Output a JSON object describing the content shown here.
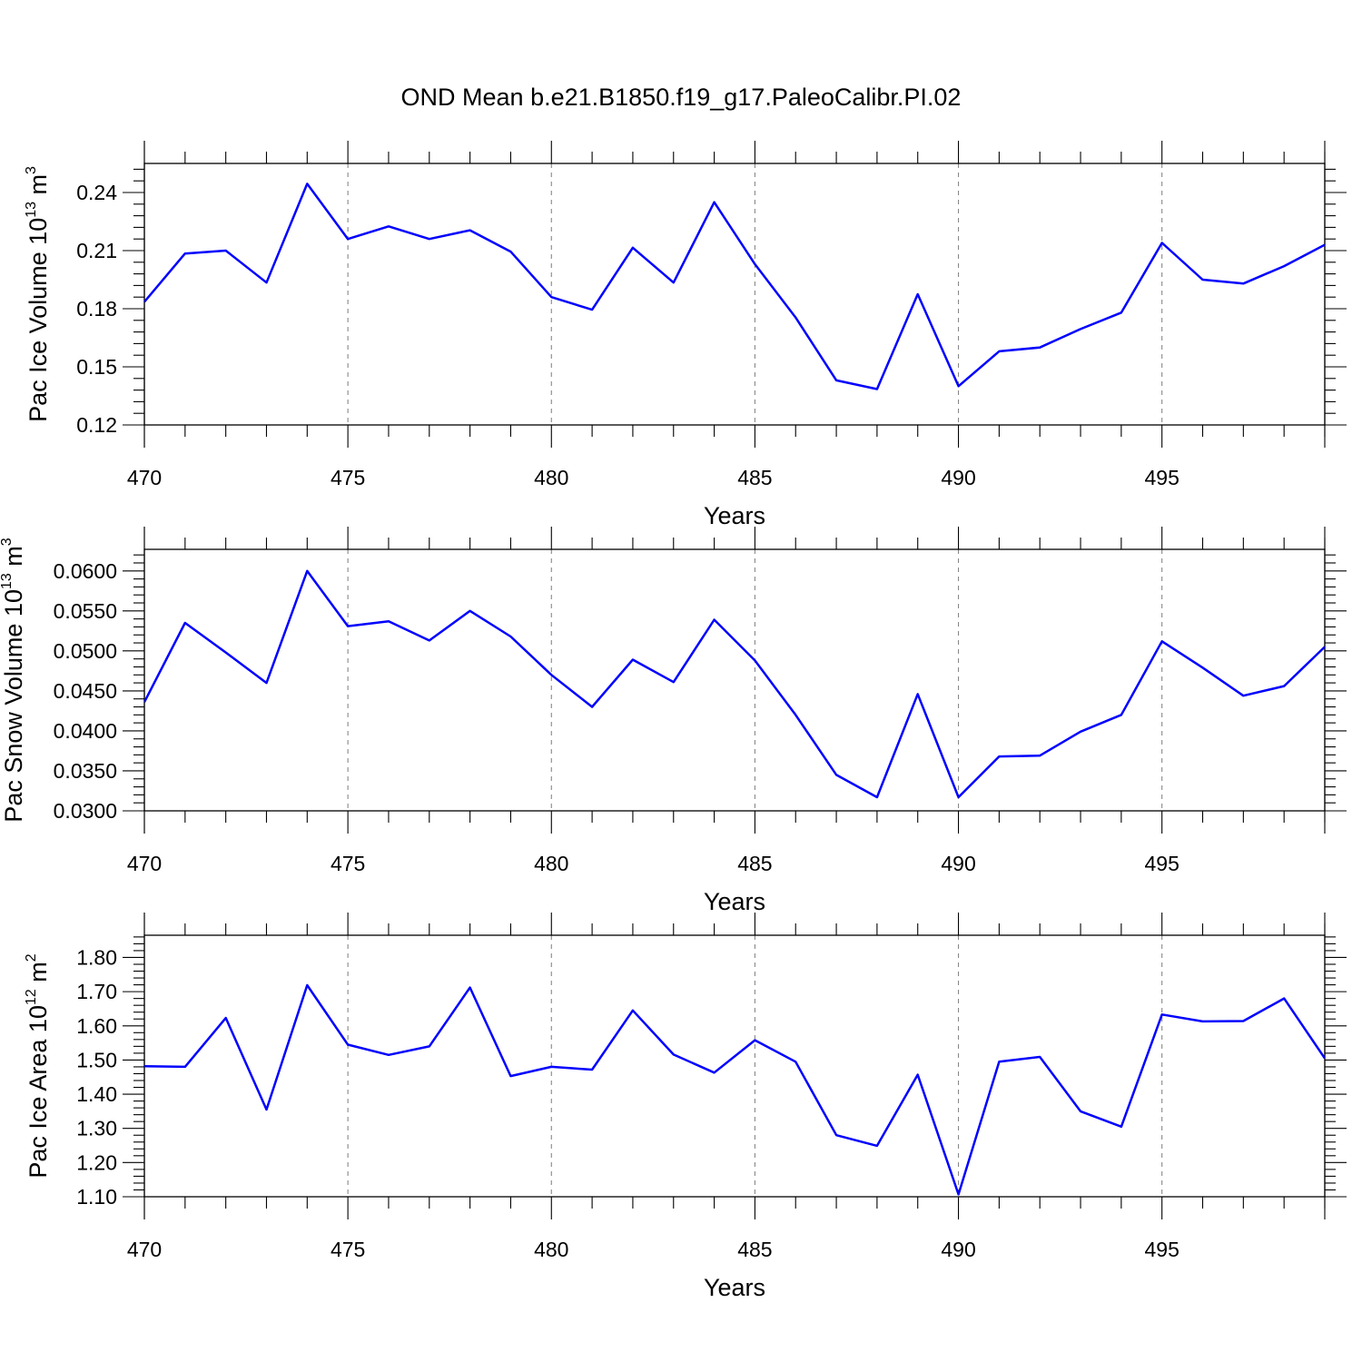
{
  "title": "OND Mean b.e21.B1850.f19_g17.PaleoCalibr.PI.02",
  "chart_data": [
    {
      "type": "line",
      "ylabel": "Pac Ice Volume 10",
      "ylabel_exp": "13",
      "ylabel_unit": " m",
      "ylabel_unit_exp": "3",
      "xlabel": "Years",
      "xlim": [
        470,
        499
      ],
      "ylim": [
        0.12,
        0.255
      ],
      "grid": "vertical dashed at major x ticks",
      "x_ticks": [
        470,
        475,
        480,
        485,
        490,
        495
      ],
      "x_tick_labels": [
        "470",
        "475",
        "480",
        "485",
        "490",
        "495"
      ],
      "y_ticks": [
        0.12,
        0.15,
        0.18,
        0.21,
        0.24
      ],
      "y_tick_labels": [
        "0.12",
        "0.15",
        "0.18",
        "0.21",
        "0.24"
      ],
      "y_minor_step": 0.006,
      "x": [
        470,
        471,
        472,
        473,
        474,
        475,
        476,
        477,
        478,
        479,
        480,
        481,
        482,
        483,
        484,
        485,
        486,
        487,
        488,
        489,
        490,
        491,
        492,
        493,
        494,
        495,
        496,
        497,
        498,
        499
      ],
      "values": [
        0.1835,
        0.2085,
        0.21,
        0.1935,
        0.2445,
        0.216,
        0.2225,
        0.216,
        0.2205,
        0.2095,
        0.186,
        0.1795,
        0.2115,
        0.1935,
        0.235,
        0.203,
        0.1755,
        0.143,
        0.1385,
        0.1875,
        0.14,
        0.158,
        0.16,
        0.1695,
        0.178,
        0.214,
        0.195,
        0.193,
        0.202,
        0.213
      ]
    },
    {
      "type": "line",
      "ylabel": "Pac Snow Volume 10",
      "ylabel_exp": "13",
      "ylabel_unit": " m",
      "ylabel_unit_exp": "3",
      "xlabel": "Years",
      "xlim": [
        470,
        499
      ],
      "ylim": [
        0.03,
        0.0627
      ],
      "grid": "vertical dashed at major x ticks",
      "x_ticks": [
        470,
        475,
        480,
        485,
        490,
        495
      ],
      "x_tick_labels": [
        "470",
        "475",
        "480",
        "485",
        "490",
        "495"
      ],
      "y_ticks": [
        0.03,
        0.035,
        0.04,
        0.045,
        0.05,
        0.055,
        0.06
      ],
      "y_tick_labels": [
        "0.0300",
        "0.0350",
        "0.0400",
        "0.0450",
        "0.0500",
        "0.0550",
        "0.0600"
      ],
      "y_minor_step": 0.001,
      "x": [
        470,
        471,
        472,
        473,
        474,
        475,
        476,
        477,
        478,
        479,
        480,
        481,
        482,
        483,
        484,
        485,
        486,
        487,
        488,
        489,
        490,
        491,
        492,
        493,
        494,
        495,
        496,
        497,
        498,
        499
      ],
      "values": [
        0.0436,
        0.0535,
        0.0498,
        0.046,
        0.06,
        0.0531,
        0.0537,
        0.0513,
        0.055,
        0.0518,
        0.047,
        0.043,
        0.0489,
        0.0461,
        0.0539,
        0.0488,
        0.042,
        0.0345,
        0.0317,
        0.0446,
        0.0317,
        0.0368,
        0.0369,
        0.0399,
        0.042,
        0.0512,
        0.0479,
        0.0444,
        0.0456,
        0.0505
      ]
    },
    {
      "type": "line",
      "ylabel": "Pac Ice Area 10",
      "ylabel_exp": "12",
      "ylabel_unit": " m",
      "ylabel_unit_exp": "2",
      "xlabel": "Years",
      "xlim": [
        470,
        499
      ],
      "ylim": [
        1.1,
        1.865
      ],
      "grid": "vertical dashed at major x ticks",
      "x_ticks": [
        470,
        475,
        480,
        485,
        490,
        495
      ],
      "x_tick_labels": [
        "470",
        "475",
        "480",
        "485",
        "490",
        "495"
      ],
      "y_ticks": [
        1.1,
        1.2,
        1.3,
        1.4,
        1.5,
        1.6,
        1.7,
        1.8
      ],
      "y_tick_labels": [
        "1.10",
        "1.20",
        "1.30",
        "1.40",
        "1.50",
        "1.60",
        "1.70",
        "1.80"
      ],
      "y_minor_step": 0.02,
      "x": [
        470,
        471,
        472,
        473,
        474,
        475,
        476,
        477,
        478,
        479,
        480,
        481,
        482,
        483,
        484,
        485,
        486,
        487,
        488,
        489,
        490,
        491,
        492,
        493,
        494,
        495,
        496,
        497,
        498,
        499
      ],
      "values": [
        1.482,
        1.48,
        1.623,
        1.355,
        1.719,
        1.545,
        1.515,
        1.54,
        1.712,
        1.453,
        1.48,
        1.472,
        1.645,
        1.516,
        1.463,
        1.558,
        1.495,
        1.28,
        1.249,
        1.457,
        1.107,
        1.495,
        1.509,
        1.35,
        1.305,
        1.633,
        1.613,
        1.614,
        1.68,
        1.505
      ]
    }
  ]
}
